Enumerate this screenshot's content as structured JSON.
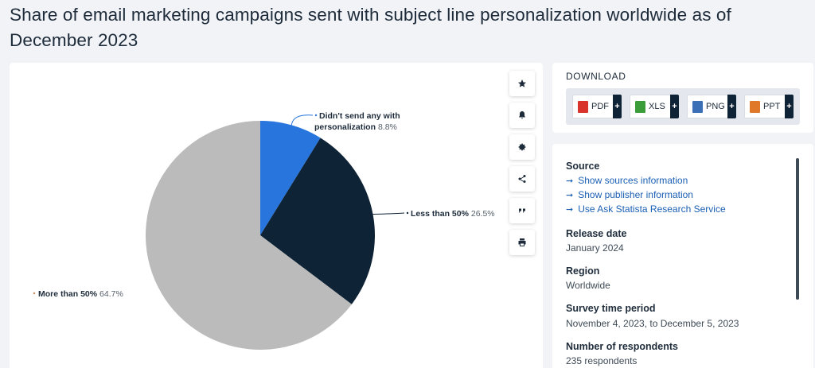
{
  "page": {
    "title": "Share of email marketing campaigns sent with subject line personalization worldwide as of December 2023"
  },
  "chart_data": {
    "type": "pie",
    "title": "",
    "categories": [
      "Didn't send any with personalization",
      "Less than 50%",
      "More than 50%"
    ],
    "values": [
      8.8,
      26.5,
      64.7
    ],
    "unit": "%",
    "labels": [
      {
        "line1": "Didn't send any with",
        "line2": "personalization",
        "value_text": "8.8%"
      },
      {
        "line1": "Less than 50%",
        "line2": "",
        "value_text": "26.5%"
      },
      {
        "line1": "More than 50%",
        "line2": "",
        "value_text": "64.7%"
      }
    ],
    "colors": [
      "#2876dd",
      "#0f2337",
      "#bbbbbb"
    ],
    "start_angle_deg": 0,
    "direction": "clockwise"
  },
  "toolbar": [
    {
      "icon": "star-icon"
    },
    {
      "icon": "bell-icon"
    },
    {
      "icon": "gear-icon"
    },
    {
      "icon": "share-icon"
    },
    {
      "icon": "quote-icon"
    },
    {
      "icon": "print-icon"
    }
  ],
  "download": {
    "title": "DOWNLOAD",
    "buttons": [
      {
        "label": "PDF",
        "plus": "+",
        "color": "#d9342b"
      },
      {
        "label": "XLS",
        "plus": "+",
        "color": "#3a9d3a"
      },
      {
        "label": "PNG",
        "plus": "+",
        "color": "#3b6fb6"
      },
      {
        "label": "PPT",
        "plus": "+",
        "color": "#e0782a"
      }
    ]
  },
  "info": {
    "source_heading": "Source",
    "links": [
      "Show sources information",
      "Show publisher information",
      "Use Ask Statista Research Service"
    ],
    "release_heading": "Release date",
    "release_value": "January 2024",
    "region_heading": "Region",
    "region_value": "Worldwide",
    "survey_heading": "Survey time period",
    "survey_value": "November 4, 2023, to December 5, 2023",
    "respondents_heading": "Number of respondents",
    "respondents_value": "235 respondents"
  }
}
